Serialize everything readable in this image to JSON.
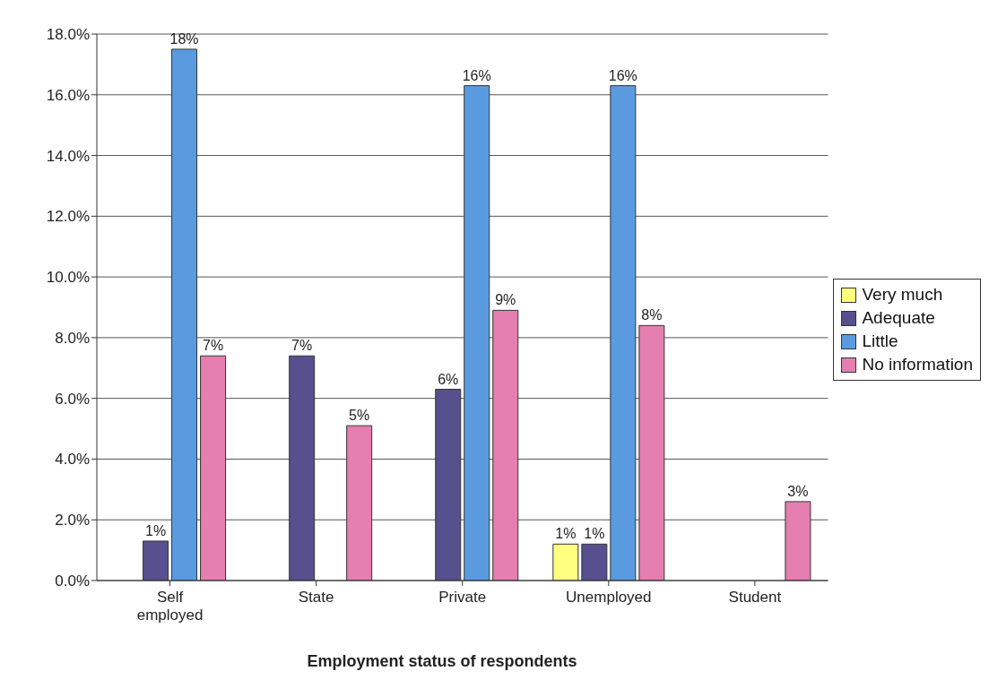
{
  "chart_data": {
    "type": "bar",
    "xlabel": "Employment status of respondents",
    "categories": [
      "Self employed",
      "State",
      "Private",
      "Unemployed",
      "Student"
    ],
    "series": [
      {
        "name": "Very much",
        "color": "#ffff80",
        "values": [
          null,
          null,
          null,
          1.2,
          null
        ],
        "value_labels": [
          null,
          null,
          null,
          "1%",
          null
        ]
      },
      {
        "name": "Adequate",
        "color": "#56508f",
        "values": [
          1.3,
          7.4,
          6.3,
          1.2,
          null
        ],
        "value_labels": [
          "1%",
          "7%",
          "6%",
          "1%",
          null
        ]
      },
      {
        "name": "Little",
        "color": "#5a9be0",
        "values": [
          17.5,
          null,
          16.3,
          16.3,
          null
        ],
        "value_labels": [
          "18%",
          null,
          "16%",
          "16%",
          null
        ]
      },
      {
        "name": "No information",
        "color": "#e47fb0",
        "values": [
          7.4,
          5.1,
          8.9,
          8.4,
          2.6
        ],
        "value_labels": [
          "7%",
          "5%",
          "9%",
          "8%",
          "3%"
        ]
      }
    ],
    "ylim": [
      0,
      18
    ],
    "yticks": [
      {
        "value": 0,
        "label": "0.0%"
      },
      {
        "value": 2,
        "label": "2.0%"
      },
      {
        "value": 4,
        "label": "4.0%"
      },
      {
        "value": 6,
        "label": "6.0%"
      },
      {
        "value": 8,
        "label": "8.0%"
      },
      {
        "value": 10,
        "label": "10.0%"
      },
      {
        "value": 12,
        "label": "12.0%"
      },
      {
        "value": 14,
        "label": "14.0%"
      },
      {
        "value": 16,
        "label": "16.0%"
      },
      {
        "value": 18,
        "label": "18.0%"
      }
    ],
    "grid": "y",
    "legend": "right"
  }
}
